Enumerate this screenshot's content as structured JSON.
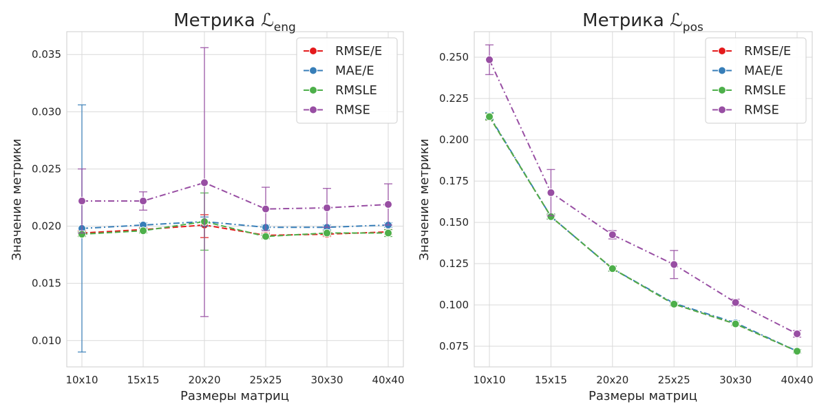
{
  "chart_data": [
    {
      "type": "line",
      "title_prefix": "Метрика ",
      "title_symbol": "ℒ",
      "title_subscript": "eng",
      "xlabel": "Размеры матриц",
      "ylabel": "Значение метрики",
      "categories": [
        "10x10",
        "15x15",
        "20x20",
        "25x25",
        "30x30",
        "40x40"
      ],
      "ylim": [
        0.0077,
        0.037
      ],
      "yticks": [
        0.01,
        0.015,
        0.02,
        0.025,
        0.03,
        0.035
      ],
      "ytick_labels": [
        "0.010",
        "0.015",
        "0.020",
        "0.025",
        "0.030",
        "0.035"
      ],
      "grid": true,
      "legend_position": "top-right",
      "series": [
        {
          "name": "RMSE/E",
          "color": "#e41a1c",
          "dash": "dashed",
          "values": [
            0.0194,
            0.0197,
            0.0201,
            0.0192,
            0.0193,
            0.0195
          ],
          "err_low": [
            0.0192,
            0.0195,
            0.019,
            0.019,
            0.0191,
            0.0193
          ],
          "err_high": [
            0.0196,
            0.0199,
            0.021,
            0.0194,
            0.0195,
            0.0197
          ]
        },
        {
          "name": "MAE/E",
          "color": "#377eb8",
          "dash": "dashdot",
          "values": [
            0.0198,
            0.0201,
            0.0204,
            0.0199,
            0.0199,
            0.0201
          ],
          "err_low": [
            0.009,
            0.0198,
            0.02,
            0.0197,
            0.0197,
            0.0199
          ],
          "err_high": [
            0.0306,
            0.0203,
            0.0208,
            0.0201,
            0.0201,
            0.0203
          ]
        },
        {
          "name": "RMSLE",
          "color": "#4daf4a",
          "dash": "dashed",
          "values": [
            0.0193,
            0.0196,
            0.0204,
            0.0191,
            0.0194,
            0.0194
          ],
          "err_low": [
            0.0191,
            0.0194,
            0.0179,
            0.0189,
            0.0192,
            0.0191
          ],
          "err_high": [
            0.0195,
            0.0198,
            0.0229,
            0.0193,
            0.0196,
            0.0197
          ]
        },
        {
          "name": "RMSE",
          "color": "#984ea3",
          "dash": "dashdot",
          "values": [
            0.0222,
            0.0222,
            0.0238,
            0.0215,
            0.0216,
            0.0219
          ],
          "err_low": [
            0.0194,
            0.0214,
            0.0121,
            0.0196,
            0.0199,
            0.0201
          ],
          "err_high": [
            0.025,
            0.023,
            0.0356,
            0.0234,
            0.0233,
            0.0237
          ]
        }
      ]
    },
    {
      "type": "line",
      "title_prefix": "Метрика ",
      "title_symbol": "ℒ",
      "title_subscript": "pos",
      "xlabel": "Размеры матриц",
      "ylabel": "Значение метрики",
      "categories": [
        "10x10",
        "15x15",
        "20x20",
        "25x25",
        "30x30",
        "40x40"
      ],
      "ylim": [
        0.0625,
        0.2655
      ],
      "yticks": [
        0.075,
        0.1,
        0.125,
        0.15,
        0.175,
        0.2,
        0.225,
        0.25
      ],
      "ytick_labels": [
        "0.075",
        "0.100",
        "0.125",
        "0.150",
        "0.175",
        "0.200",
        "0.225",
        "0.250"
      ],
      "grid": true,
      "legend_position": "top-right",
      "series": [
        {
          "name": "RMSE/E",
          "color": "#e41a1c",
          "dash": "dashed",
          "values": [
            0.214,
            0.1535,
            0.122,
            0.1005,
            0.0885,
            0.072
          ],
          "err_low": [
            0.212,
            0.152,
            0.1205,
            0.0995,
            0.0875,
            0.071
          ],
          "err_high": [
            0.216,
            0.155,
            0.1235,
            0.1015,
            0.0895,
            0.073
          ]
        },
        {
          "name": "MAE/E",
          "color": "#377eb8",
          "dash": "dashdot",
          "values": [
            0.2145,
            0.1535,
            0.122,
            0.101,
            0.0892,
            0.072
          ],
          "err_low": [
            0.2125,
            0.152,
            0.1205,
            0.1,
            0.088,
            0.071
          ],
          "err_high": [
            0.2165,
            0.155,
            0.1235,
            0.102,
            0.0905,
            0.073
          ]
        },
        {
          "name": "RMSLE",
          "color": "#4daf4a",
          "dash": "dashed",
          "values": [
            0.214,
            0.1535,
            0.122,
            0.1005,
            0.0885,
            0.072
          ],
          "err_low": [
            0.212,
            0.152,
            0.1205,
            0.0995,
            0.0875,
            0.071
          ],
          "err_high": [
            0.216,
            0.155,
            0.1235,
            0.1015,
            0.0895,
            0.073
          ]
        },
        {
          "name": "RMSE",
          "color": "#984ea3",
          "dash": "dashdot",
          "values": [
            0.2485,
            0.168,
            0.1425,
            0.1245,
            0.1015,
            0.0825
          ],
          "err_low": [
            0.2395,
            0.154,
            0.14,
            0.116,
            0.0995,
            0.0805
          ],
          "err_high": [
            0.2575,
            0.182,
            0.145,
            0.133,
            0.1035,
            0.0845
          ]
        }
      ]
    }
  ]
}
